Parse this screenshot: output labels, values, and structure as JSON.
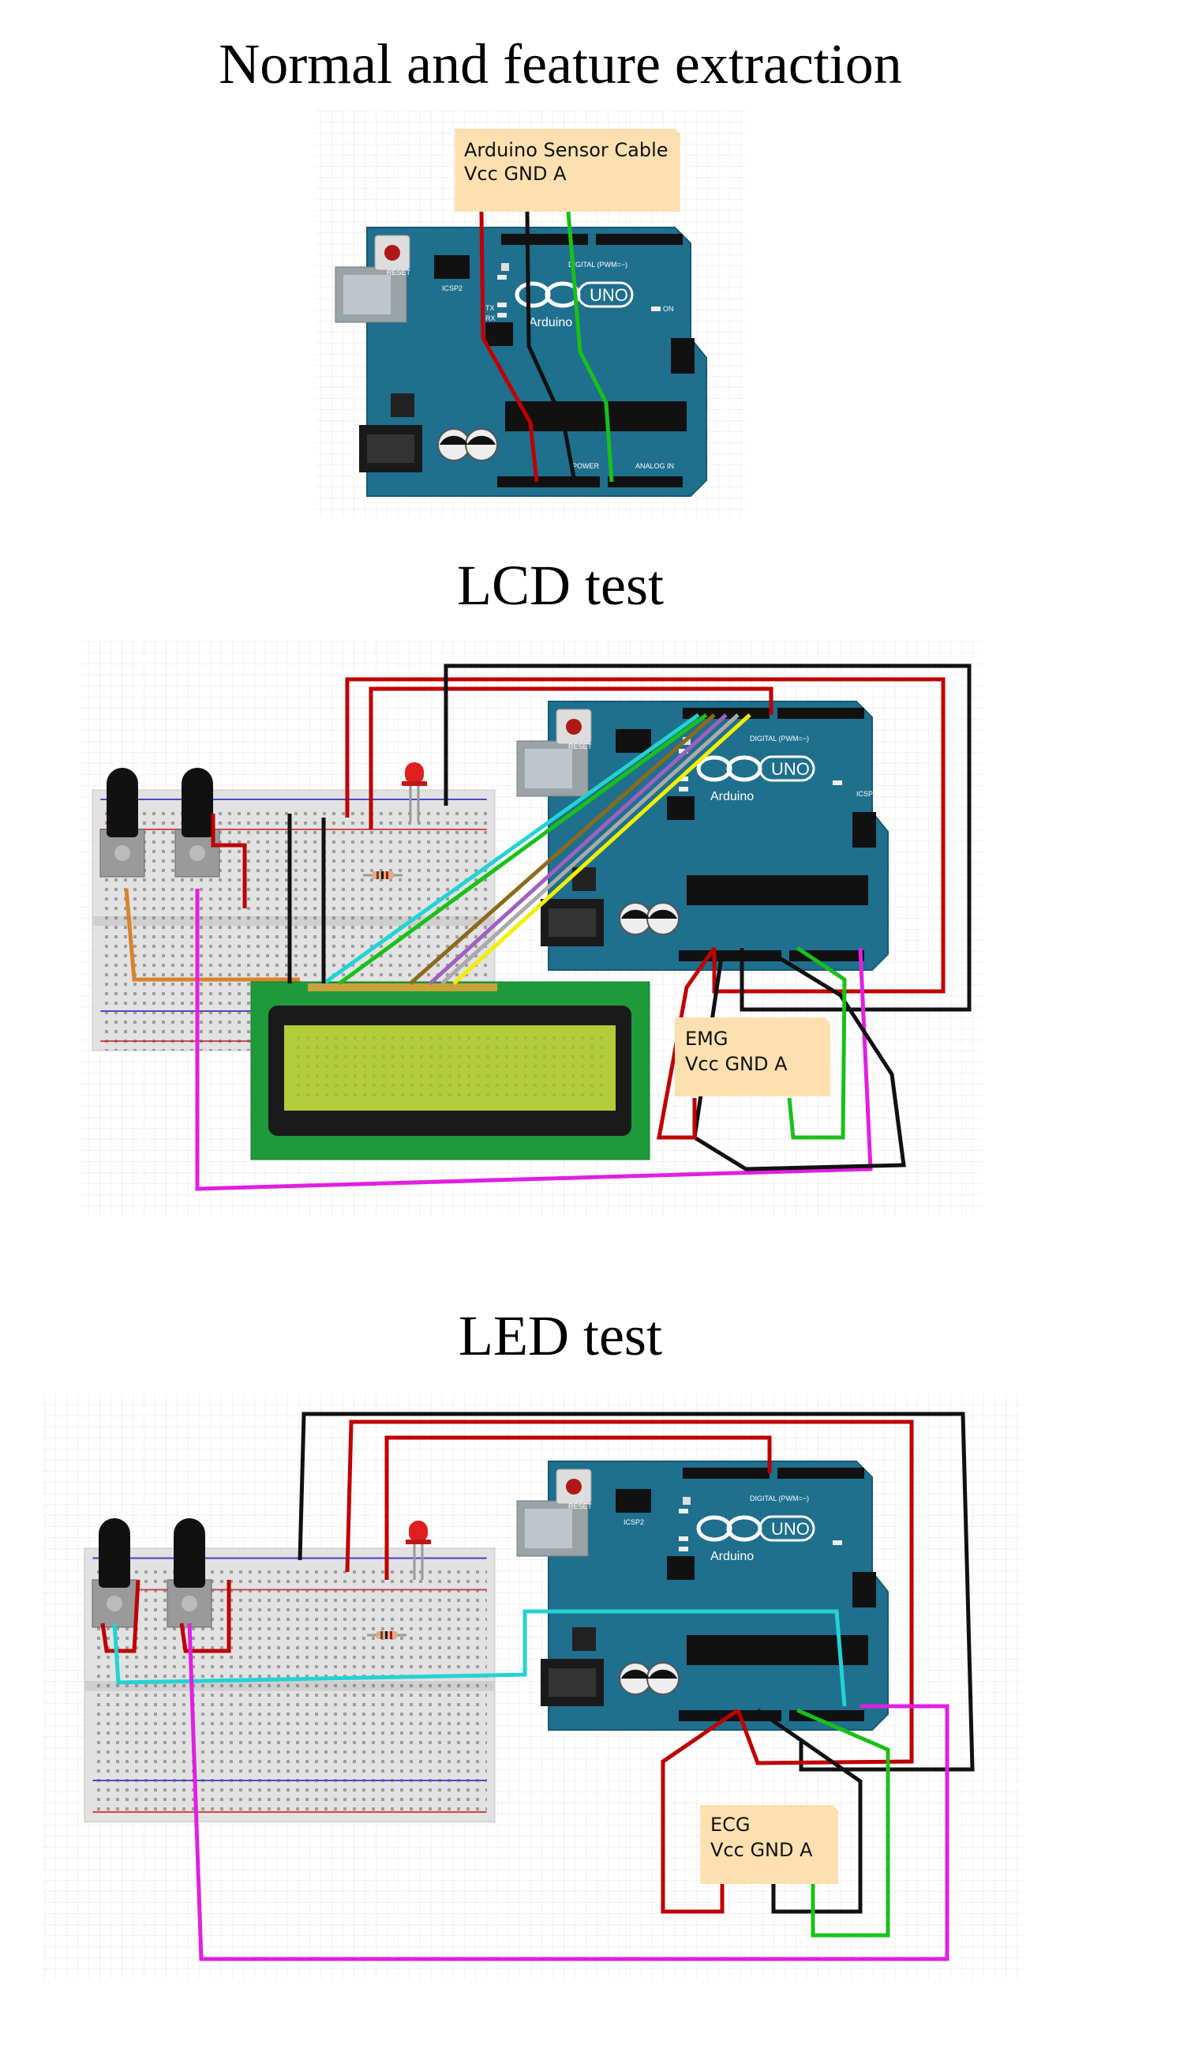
{
  "sections": [
    {
      "title": "Normal and feature extraction",
      "note": {
        "line1": "Arduino Sensor Cable",
        "line2": "Vcc  GND  A"
      }
    },
    {
      "title": "LCD test",
      "note": {
        "line1": "EMG",
        "line2": "Vcc  GND  A"
      }
    },
    {
      "title": "LED test",
      "note": {
        "line1": "ECG",
        "line2": "Vcc  GND  A"
      }
    }
  ],
  "board": {
    "brand": "Arduino",
    "model": "UNO",
    "reset": "RESET",
    "icsp2": "ICSP2",
    "icsp": "ICSP",
    "on": "ON",
    "tx": "TX",
    "rx": "RX",
    "l": "L",
    "digital": "DIGITAL (PWM=~)",
    "power": "POWER",
    "analog": "ANALOG IN"
  },
  "colors": {
    "board": "#1f6f8e",
    "red_wire": "#c00000",
    "black_wire": "#111111",
    "green_wire": "#19c019",
    "cyan_wire": "#23d3d3",
    "magenta_wire": "#e020e0",
    "orange_wire": "#d9822b",
    "yellow_wire": "#f0f000",
    "lcd_screen": "#b3cc3a",
    "lcd_pcb": "#1e9a3a",
    "note": "#fde0b0",
    "led": "#e02020"
  }
}
